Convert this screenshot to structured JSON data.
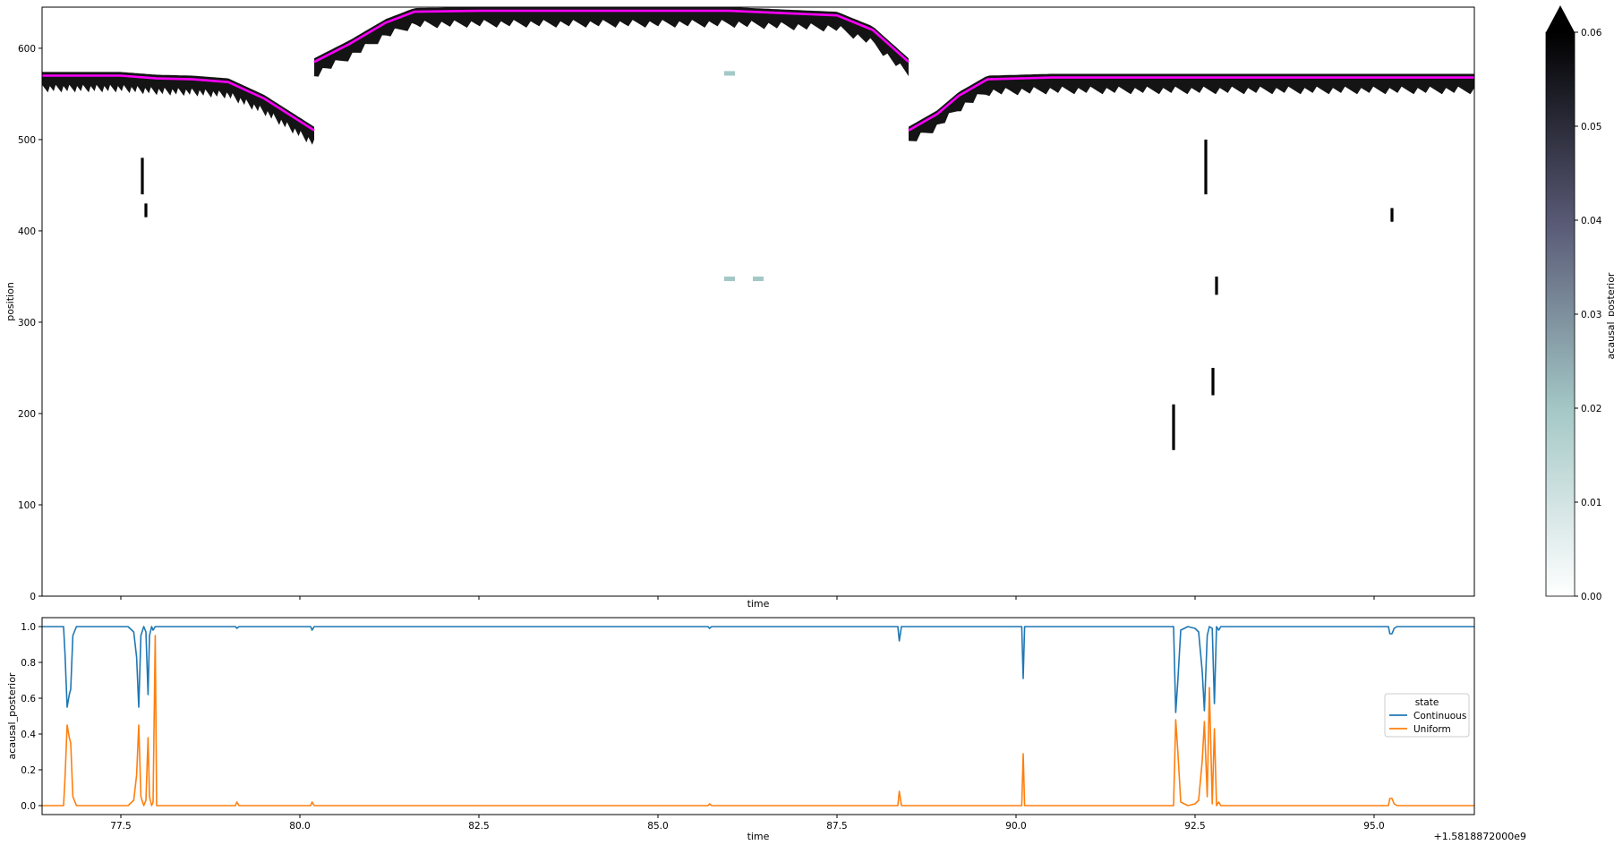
{
  "colors": {
    "trace_color": "#ff00ff",
    "posterior_dark": "#000000",
    "continuous_color": "#1f77b4",
    "uniform_color": "#ff7f0e",
    "colormap": [
      "#ffffff",
      "#a4c8c6",
      "#595a76",
      "#000000"
    ]
  },
  "chart_data": [
    {
      "type": "heatmap",
      "title": "",
      "xlabel": "time",
      "ylabel": "position",
      "xlim": [
        76.4,
        96.4
      ],
      "ylim": [
        0,
        645
      ],
      "xticks": [
        77.5,
        80.0,
        82.5,
        85.0,
        87.5,
        90.0,
        92.5,
        95.0
      ],
      "yticks": [
        0,
        100,
        200,
        300,
        400,
        500,
        600
      ],
      "ytick_labels": [
        "0",
        "100",
        "200",
        "300",
        "400",
        "500",
        "600"
      ],
      "x_offset_label": "+1.5818872000e9",
      "colorbar": {
        "label": "acausal_posterior",
        "range": [
          0,
          0.06
        ],
        "ticks": [
          "0.00",
          "0.01",
          "0.02",
          "0.03",
          "0.04",
          "0.05",
          "0.06"
        ],
        "extend": "max"
      },
      "trace": {
        "name": "",
        "segments": [
          {
            "x": [
              76.4,
              77.5,
              78.0,
              78.5,
              79.0,
              79.5,
              80.2
            ],
            "y": [
              570,
              570,
              567,
              566,
              563,
              545,
              510
            ]
          },
          {
            "x": [
              80.2,
              80.7,
              81.2,
              81.6,
              82.5,
              84.0,
              86.0,
              87.5,
              88.0,
              88.5
            ],
            "y": [
              585,
              605,
              628,
              640,
              641,
              641,
              641,
              636,
              620,
              585
            ]
          },
          {
            "x": [
              88.5,
              88.9,
              89.2,
              89.6,
              90.5,
              92.5,
              94.0,
              96.4
            ],
            "y": [
              510,
              528,
              548,
              566,
              568,
              568,
              568,
              568
            ]
          }
        ]
      }
    },
    {
      "type": "line",
      "title": "",
      "xlabel": "time",
      "ylabel": "acausal_posterior",
      "xlim": [
        76.4,
        96.4
      ],
      "ylim": [
        -0.05,
        1.05
      ],
      "xticks": [
        77.5,
        80.0,
        82.5,
        85.0,
        87.5,
        90.0,
        92.5,
        95.0
      ],
      "xtick_labels": [
        "77.5",
        "80.0",
        "82.5",
        "85.0",
        "87.5",
        "90.0",
        "92.5",
        "95.0"
      ],
      "yticks": [
        0.0,
        0.2,
        0.4,
        0.6,
        0.8,
        1.0
      ],
      "ytick_labels": [
        "0.0",
        "0.2",
        "0.4",
        "0.6",
        "0.8",
        "1.0"
      ],
      "x_offset_label": "+1.5818872000e9",
      "legend": {
        "title": "state",
        "placement": "center-right"
      },
      "series": [
        {
          "name": "Continuous",
          "x": [
            76.4,
            76.7,
            76.72,
            76.75,
            76.78,
            76.8,
            76.83,
            76.88,
            76.93,
            77.6,
            77.68,
            77.72,
            77.75,
            77.78,
            77.82,
            77.85,
            77.88,
            77.9,
            77.93,
            77.95,
            77.98,
            78.0,
            78.05,
            79.1,
            79.12,
            79.15,
            80.15,
            80.17,
            80.2,
            85.7,
            85.72,
            85.75,
            88.35,
            88.37,
            88.4,
            90.08,
            90.1,
            90.12,
            92.2,
            92.23,
            92.26,
            92.3,
            92.4,
            92.5,
            92.55,
            92.6,
            92.63,
            92.67,
            92.7,
            92.74,
            92.77,
            92.8,
            92.83,
            92.86,
            92.9,
            95.2,
            95.22,
            95.25,
            95.28,
            95.32,
            96.4
          ],
          "values": [
            1.0,
            1.0,
            0.85,
            0.55,
            0.62,
            0.65,
            0.95,
            1.0,
            1.0,
            1.0,
            0.97,
            0.83,
            0.55,
            0.95,
            1.0,
            0.97,
            0.62,
            0.95,
            1.0,
            0.98,
            1.0,
            1.0,
            1.0,
            1.0,
            0.99,
            1.0,
            1.0,
            0.98,
            1.0,
            1.0,
            0.99,
            1.0,
            1.0,
            0.92,
            1.0,
            1.0,
            0.71,
            1.0,
            1.0,
            0.52,
            0.7,
            0.98,
            1.0,
            0.99,
            0.97,
            0.75,
            0.53,
            0.95,
            1.0,
            0.99,
            0.57,
            1.0,
            0.98,
            1.0,
            1.0,
            1.0,
            0.96,
            0.96,
            0.99,
            1.0,
            1.0
          ]
        },
        {
          "name": "Uniform",
          "x": [
            76.4,
            76.7,
            76.72,
            76.75,
            76.78,
            76.8,
            76.83,
            76.88,
            76.93,
            77.6,
            77.68,
            77.72,
            77.75,
            77.78,
            77.82,
            77.85,
            77.88,
            77.9,
            77.93,
            77.95,
            77.98,
            78.0,
            78.05,
            79.1,
            79.12,
            79.15,
            80.15,
            80.17,
            80.2,
            85.7,
            85.72,
            85.75,
            88.35,
            88.37,
            88.4,
            90.08,
            90.1,
            90.12,
            92.2,
            92.23,
            92.26,
            92.3,
            92.4,
            92.5,
            92.55,
            92.6,
            92.63,
            92.67,
            92.7,
            92.74,
            92.77,
            92.8,
            92.83,
            92.86,
            92.9,
            95.2,
            95.22,
            95.25,
            95.28,
            95.32,
            96.4
          ],
          "values": [
            0.0,
            0.0,
            0.15,
            0.45,
            0.38,
            0.35,
            0.05,
            0.0,
            0.0,
            0.0,
            0.03,
            0.17,
            0.45,
            0.05,
            0.0,
            0.03,
            0.38,
            0.05,
            0.0,
            0.02,
            0.95,
            0.0,
            0.0,
            0.0,
            0.02,
            0.0,
            0.0,
            0.02,
            0.0,
            0.0,
            0.01,
            0.0,
            0.0,
            0.08,
            0.0,
            0.0,
            0.29,
            0.0,
            0.0,
            0.48,
            0.3,
            0.02,
            0.0,
            0.01,
            0.03,
            0.25,
            0.47,
            0.05,
            0.66,
            0.01,
            0.43,
            0.0,
            0.02,
            0.0,
            0.0,
            0.0,
            0.04,
            0.04,
            0.01,
            0.0,
            0.0
          ]
        }
      ]
    }
  ]
}
